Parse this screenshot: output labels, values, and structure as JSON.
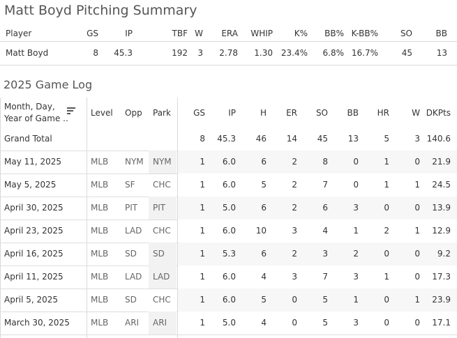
{
  "summary": {
    "title": "Matt Boyd Pitching Summary",
    "headers": [
      "Player",
      "GS",
      "IP",
      "TBF",
      "W",
      "ERA",
      "WHIP",
      "K%",
      "BB%",
      "K-BB%",
      "SO",
      "BB"
    ],
    "row": [
      "Matt Boyd",
      "8",
      "45.3",
      "192",
      "3",
      "2.78",
      "1.30",
      "23.4%",
      "6.8%",
      "16.7%",
      "45",
      "13"
    ]
  },
  "game_log": {
    "title": "2025 Game Log",
    "header_dim_line1": "Month, Day,",
    "header_dim_line2": "Year of Game ..",
    "headers": [
      "Level",
      "Opp",
      "Park",
      "GS",
      "IP",
      "H",
      "ER",
      "SO",
      "BB",
      "HR",
      "W",
      "DKPts"
    ],
    "grand_total": {
      "label": "Grand Total",
      "values": [
        "8",
        "45.3",
        "46",
        "14",
        "45",
        "13",
        "5",
        "3",
        "140.6"
      ]
    },
    "rows": [
      {
        "date": "May 11, 2025",
        "level": "MLB",
        "opp": "NYM",
        "park": "NYM",
        "values": [
          "1",
          "6.0",
          "6",
          "2",
          "8",
          "0",
          "1",
          "0",
          "21.9"
        ]
      },
      {
        "date": "May 5, 2025",
        "level": "MLB",
        "opp": "SF",
        "park": "CHC",
        "values": [
          "1",
          "6.0",
          "5",
          "2",
          "7",
          "0",
          "1",
          "1",
          "24.5"
        ]
      },
      {
        "date": "April 30, 2025",
        "level": "MLB",
        "opp": "PIT",
        "park": "PIT",
        "values": [
          "1",
          "5.0",
          "6",
          "2",
          "6",
          "3",
          "0",
          "0",
          "13.9"
        ]
      },
      {
        "date": "April 23, 2025",
        "level": "MLB",
        "opp": "LAD",
        "park": "CHC",
        "values": [
          "1",
          "6.0",
          "10",
          "3",
          "4",
          "1",
          "2",
          "1",
          "12.9"
        ]
      },
      {
        "date": "April 16, 2025",
        "level": "MLB",
        "opp": "SD",
        "park": "SD",
        "values": [
          "1",
          "5.3",
          "6",
          "2",
          "3",
          "2",
          "0",
          "0",
          "9.2"
        ]
      },
      {
        "date": "April 11, 2025",
        "level": "MLB",
        "opp": "LAD",
        "park": "LAD",
        "values": [
          "1",
          "6.0",
          "4",
          "3",
          "7",
          "3",
          "1",
          "0",
          "17.3"
        ]
      },
      {
        "date": "April 5, 2025",
        "level": "MLB",
        "opp": "SD",
        "park": "CHC",
        "values": [
          "1",
          "6.0",
          "5",
          "0",
          "5",
          "1",
          "0",
          "1",
          "23.9"
        ]
      },
      {
        "date": "March 30, 2025",
        "level": "MLB",
        "opp": "ARI",
        "park": "ARI",
        "values": [
          "1",
          "5.0",
          "4",
          "0",
          "5",
          "3",
          "0",
          "0",
          "17.1"
        ]
      }
    ],
    "sort_icon": "sort-descending-icon"
  }
}
